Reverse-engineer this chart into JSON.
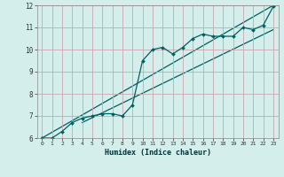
{
  "xlabel": "Humidex (Indice chaleur)",
  "bg_color": "#d4eeec",
  "grid_color": "#c8a8b0",
  "line_color": "#006060",
  "xlim": [
    -0.5,
    23.5
  ],
  "ylim": [
    6,
    12
  ],
  "xticks": [
    0,
    1,
    2,
    3,
    4,
    5,
    6,
    7,
    8,
    9,
    10,
    11,
    12,
    13,
    14,
    15,
    16,
    17,
    18,
    19,
    20,
    21,
    22,
    23
  ],
  "yticks": [
    6,
    7,
    8,
    9,
    10,
    11,
    12
  ],
  "data_x": [
    0,
    1,
    2,
    3,
    4,
    5,
    6,
    7,
    8,
    9,
    10,
    11,
    12,
    13,
    14,
    15,
    16,
    17,
    18,
    19,
    20,
    21,
    22,
    23
  ],
  "data_y": [
    6.0,
    6.0,
    6.3,
    6.7,
    6.9,
    7.0,
    7.1,
    7.1,
    7.0,
    7.5,
    9.5,
    10.0,
    10.1,
    9.8,
    10.1,
    10.5,
    10.7,
    10.6,
    10.6,
    10.6,
    11.0,
    10.9,
    11.1,
    11.95
  ],
  "trend1_x": [
    0,
    23
  ],
  "trend1_y": [
    6.0,
    12.0
  ],
  "trend2_x": [
    4,
    23
  ],
  "trend2_y": [
    6.7,
    10.9
  ]
}
